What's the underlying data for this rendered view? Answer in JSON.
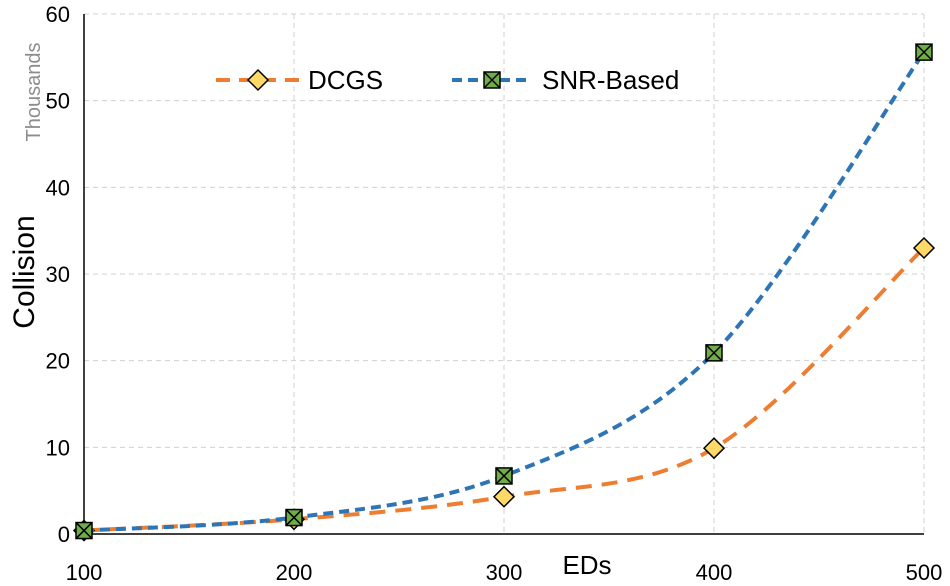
{
  "chart_data": {
    "type": "line",
    "title": "",
    "xlabel": "EDs",
    "ylabel": "Collision",
    "y_units_label": "Thousands",
    "x": [
      100,
      200,
      300,
      400,
      500
    ],
    "x_ticks": [
      100,
      200,
      300,
      400,
      500
    ],
    "y_ticks": [
      0,
      10,
      20,
      30,
      40,
      50,
      60
    ],
    "xlim": [
      100,
      500
    ],
    "ylim": [
      0,
      60
    ],
    "grid": true,
    "legend_position": "top",
    "series": [
      {
        "name": "DCGS",
        "values": [
          0.4,
          1.7,
          4.3,
          9.9,
          33.0
        ],
        "color": "#ED7D31",
        "marker": "diamond",
        "marker_fill": "#FFD966",
        "line_style": "dashed"
      },
      {
        "name": "SNR-Based",
        "values": [
          0.4,
          1.9,
          6.7,
          20.9,
          55.6
        ],
        "color": "#2E75B6",
        "marker": "square-x",
        "marker_fill": "#70AD47",
        "line_style": "dashed"
      }
    ]
  }
}
